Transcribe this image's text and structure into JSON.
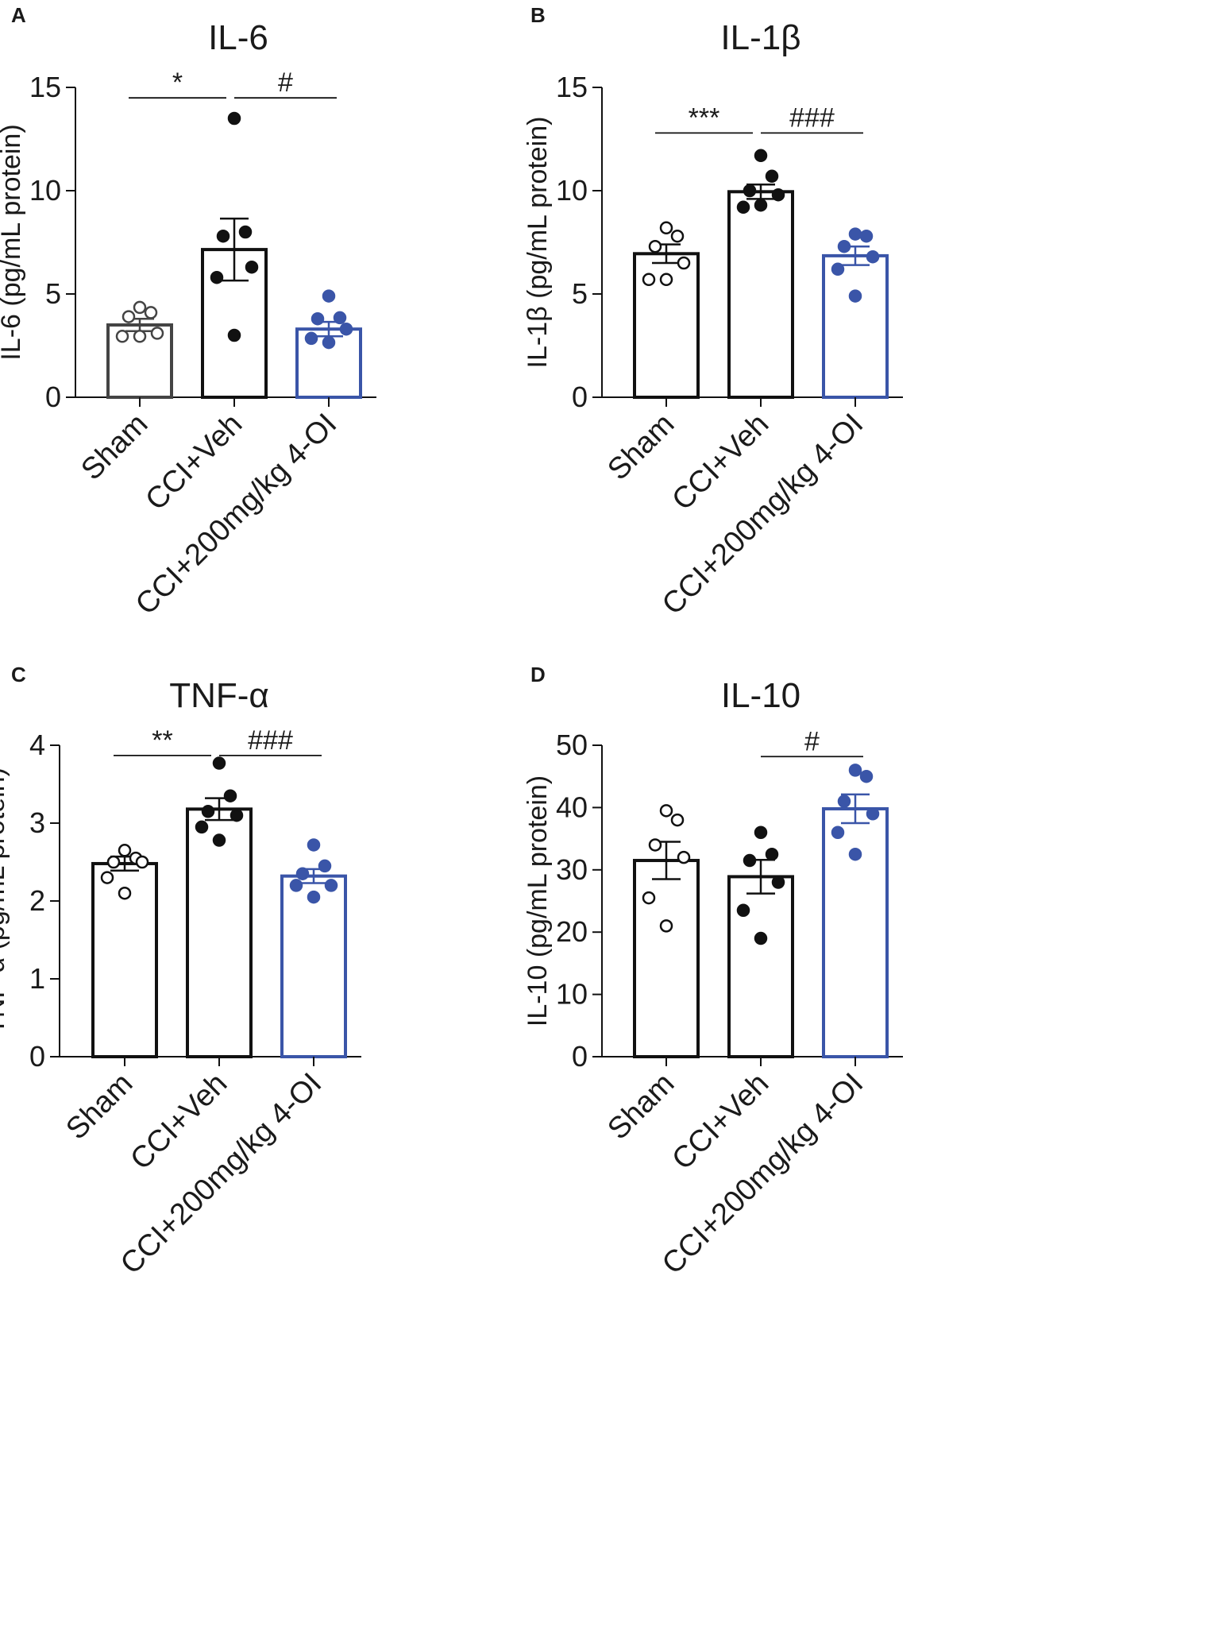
{
  "figure": {
    "background": "#ffffff"
  },
  "colors": {
    "black": "#111111",
    "sham": "#444444",
    "treated": "#3a55a8"
  },
  "chart_data": [
    {
      "panel": "A",
      "type": "bar",
      "title": "IL-6",
      "ylabel": "IL-6 (pg/mL protein)",
      "ylim": [
        0,
        15
      ],
      "yticks": [
        0,
        5,
        10,
        15
      ],
      "categories": [
        "Sham",
        "CCI+Veh",
        "CCI+200mg/kg 4-OI"
      ],
      "series": [
        {
          "name": "Sham",
          "mean": 3.5,
          "sem": 0.3,
          "points": [
            4.35,
            4.1,
            3.9,
            3.1,
            2.95,
            2.95
          ],
          "style": "open",
          "color": "#444444"
        },
        {
          "name": "CCI+Veh",
          "mean": 7.15,
          "sem": 1.5,
          "points": [
            13.5,
            8.0,
            7.8,
            6.3,
            5.8,
            3.0
          ],
          "style": "filled",
          "color": "#111111"
        },
        {
          "name": "CCI+200mg/kg 4-OI",
          "mean": 3.3,
          "sem": 0.35,
          "points": [
            4.9,
            3.85,
            3.8,
            3.3,
            2.85,
            2.65
          ],
          "style": "filled",
          "color": "#3a55a8"
        }
      ],
      "significance": [
        {
          "from": 0,
          "to": 1,
          "label": "*",
          "y": 14.8
        },
        {
          "from": 1,
          "to": 2,
          "label": "#",
          "y": 14.8
        }
      ]
    },
    {
      "panel": "B",
      "type": "bar",
      "title": "IL-1β",
      "ylabel": "IL-1β (pg/mL protein)",
      "ylim": [
        0,
        15
      ],
      "yticks": [
        0,
        5,
        10,
        15
      ],
      "categories": [
        "Sham",
        "CCI+Veh",
        "CCI+200mg/kg 4-OI"
      ],
      "series": [
        {
          "name": "Sham",
          "mean": 6.95,
          "sem": 0.45,
          "points": [
            8.2,
            7.8,
            7.3,
            6.5,
            5.7,
            5.7
          ],
          "style": "open",
          "color": "#111111"
        },
        {
          "name": "CCI+Veh",
          "mean": 9.95,
          "sem": 0.35,
          "points": [
            11.7,
            10.7,
            10.0,
            9.8,
            9.2,
            9.3
          ],
          "style": "filled",
          "color": "#111111"
        },
        {
          "name": "CCI+200mg/kg 4-OI",
          "mean": 6.85,
          "sem": 0.45,
          "points": [
            7.9,
            7.8,
            7.3,
            6.8,
            6.2,
            4.9
          ],
          "style": "filled",
          "color": "#3a55a8"
        }
      ],
      "significance": [
        {
          "from": 0,
          "to": 1,
          "label": "***",
          "y": 13.1
        },
        {
          "from": 1,
          "to": 2,
          "label": "###",
          "y": 13.1
        }
      ]
    },
    {
      "panel": "C",
      "type": "bar",
      "title": "TNF-α",
      "ylabel": "TNF-α (pg/mL protein)",
      "ylim": [
        0,
        4
      ],
      "yticks": [
        0,
        1,
        2,
        3,
        4
      ],
      "categories": [
        "Sham",
        "CCI+Veh",
        "CCI+200mg/kg 4-OI"
      ],
      "series": [
        {
          "name": "Sham",
          "mean": 2.48,
          "sem": 0.09,
          "points": [
            2.65,
            2.55,
            2.5,
            2.5,
            2.3,
            2.1
          ],
          "style": "open",
          "color": "#111111"
        },
        {
          "name": "CCI+Veh",
          "mean": 3.18,
          "sem": 0.14,
          "points": [
            3.77,
            3.35,
            3.15,
            3.1,
            2.95,
            2.78
          ],
          "style": "filled",
          "color": "#111111"
        },
        {
          "name": "CCI+200mg/kg 4-OI",
          "mean": 2.32,
          "sem": 0.09,
          "points": [
            2.72,
            2.45,
            2.35,
            2.2,
            2.2,
            2.05
          ],
          "style": "filled",
          "color": "#3a55a8"
        }
      ],
      "significance": [
        {
          "from": 0,
          "to": 1,
          "label": "**",
          "y": 3.95
        },
        {
          "from": 1,
          "to": 2,
          "label": "###",
          "y": 3.95
        }
      ]
    },
    {
      "panel": "D",
      "type": "bar",
      "title": "IL-10",
      "ylabel": "IL-10 (pg/mL protein)",
      "ylim": [
        0,
        50
      ],
      "yticks": [
        0,
        10,
        20,
        30,
        40,
        50
      ],
      "categories": [
        "Sham",
        "CCI+Veh",
        "CCI+200mg/kg 4-OI"
      ],
      "series": [
        {
          "name": "Sham",
          "mean": 31.5,
          "sem": 3.0,
          "points": [
            39.5,
            38.0,
            34.0,
            32.0,
            25.5,
            21.0
          ],
          "style": "open",
          "color": "#111111"
        },
        {
          "name": "CCI+Veh",
          "mean": 28.9,
          "sem": 2.7,
          "points": [
            36.0,
            32.5,
            31.5,
            28.0,
            23.5,
            19.0
          ],
          "style": "filled",
          "color": "#111111"
        },
        {
          "name": "CCI+200mg/kg 4-OI",
          "mean": 39.8,
          "sem": 2.3,
          "points": [
            46.0,
            45.0,
            41.0,
            39.0,
            36.0,
            32.5
          ],
          "style": "filled",
          "color": "#3a55a8"
        }
      ],
      "significance": [
        {
          "from": 1,
          "to": 2,
          "label": "#",
          "y": 49.2
        }
      ]
    }
  ]
}
